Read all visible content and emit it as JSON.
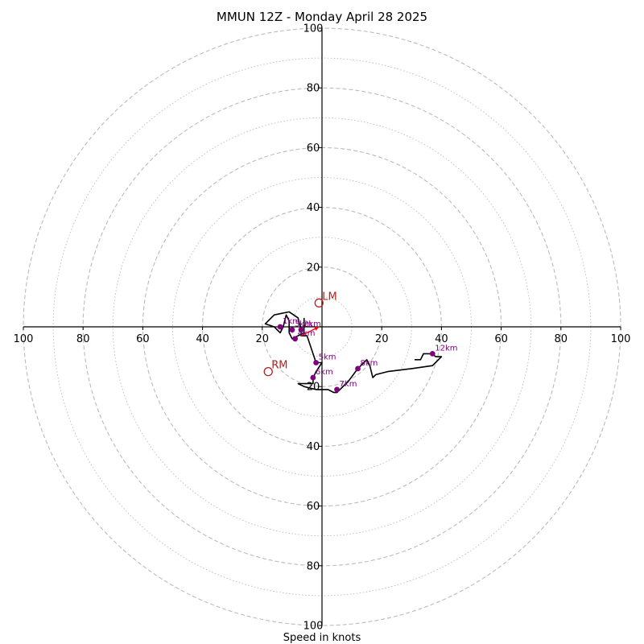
{
  "chart_data": {
    "type": "hodograph",
    "title": "MMUN 12Z - Monday April 28 2025",
    "xlabel": "Speed in knots",
    "axis_range": [
      -100,
      100
    ],
    "ring_major": [
      20,
      40,
      60,
      80,
      100
    ],
    "ring_minor": [
      10,
      30,
      50,
      70,
      90
    ],
    "x_tick_labels": [
      "100",
      "80",
      "60",
      "40",
      "20",
      "20",
      "40",
      "60",
      "80",
      "100"
    ],
    "x_tick_values": [
      -100,
      -80,
      -60,
      -40,
      -20,
      20,
      40,
      60,
      80,
      100
    ],
    "y_tick_labels": [
      "100",
      "80",
      "60",
      "40",
      "20",
      "20",
      "40",
      "60",
      "80",
      "100"
    ],
    "y_tick_values": [
      100,
      80,
      60,
      40,
      20,
      -20,
      -40,
      -60,
      -80,
      -100
    ],
    "colors": {
      "trace": "#000000",
      "markers": "#800080",
      "motion": "#b22222",
      "grid": "#bbbbbb",
      "shear_vector": "#ff0000"
    },
    "trace": [
      [
        -6,
        3
      ],
      [
        -6,
        -2
      ],
      [
        -10,
        -4
      ],
      [
        -11,
        -2
      ],
      [
        -11,
        2
      ],
      [
        -12,
        4
      ],
      [
        -13,
        0
      ],
      [
        -14,
        -2
      ],
      [
        -16,
        0
      ],
      [
        -19,
        1
      ],
      [
        -16,
        4
      ],
      [
        -11,
        5
      ],
      [
        -8,
        3
      ],
      [
        -7,
        -1
      ],
      [
        -7,
        -3
      ],
      [
        -5,
        -3
      ],
      [
        -2,
        -12
      ],
      [
        -1,
        -12
      ],
      [
        0,
        -12
      ],
      [
        -2,
        -15
      ],
      [
        -3,
        -17
      ],
      [
        -3,
        -18
      ],
      [
        -3,
        -19
      ],
      [
        -6,
        -19
      ],
      [
        -8,
        -19
      ],
      [
        -6,
        -20
      ],
      [
        -2,
        -21
      ],
      [
        2,
        -21
      ],
      [
        4,
        -22
      ],
      [
        5,
        -22
      ],
      [
        6,
        -21
      ],
      [
        8,
        -19
      ],
      [
        9,
        -18
      ],
      [
        12,
        -14
      ],
      [
        14,
        -12
      ],
      [
        15,
        -11
      ],
      [
        16,
        -13
      ],
      [
        17,
        -17
      ],
      [
        18,
        -16
      ],
      [
        22,
        -15
      ],
      [
        30,
        -14
      ],
      [
        37,
        -13
      ],
      [
        38,
        -12
      ],
      [
        39,
        -11
      ],
      [
        40,
        -10
      ],
      [
        38,
        -10
      ],
      [
        37,
        -9
      ],
      [
        34,
        -9
      ],
      [
        33,
        -11
      ],
      [
        31,
        -11
      ]
    ],
    "heights": [
      {
        "label": "1km",
        "u": -14,
        "v": 0
      },
      {
        "label": "2km",
        "u": -7,
        "v": -1
      },
      {
        "label": "3km",
        "u": -10,
        "v": -1
      },
      {
        "label": "4km",
        "u": -9,
        "v": -4
      },
      {
        "label": "5km",
        "u": -2,
        "v": -12
      },
      {
        "label": "6km",
        "u": -3,
        "v": -17
      },
      {
        "label": "7km",
        "u": 5,
        "v": -21
      },
      {
        "label": "8km",
        "u": 12,
        "v": -14
      },
      {
        "label": "12km",
        "u": 37,
        "v": -9
      }
    ],
    "storm_motion": [
      {
        "label": "LM",
        "u": -1,
        "v": 8
      },
      {
        "label": "RM",
        "u": -18,
        "v": -15
      }
    ],
    "shear_vector": {
      "from": [
        -7,
        -3
      ],
      "to": [
        -1,
        0
      ]
    }
  }
}
